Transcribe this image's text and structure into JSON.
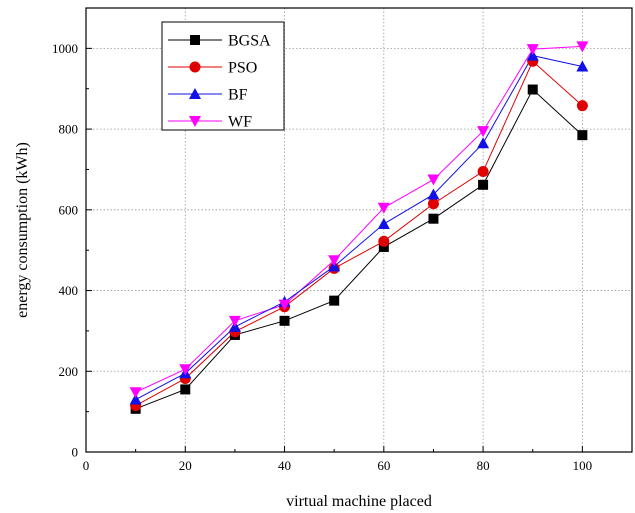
{
  "chart_data": {
    "type": "line",
    "title": "",
    "xlabel": "virtual machine placed",
    "ylabel": "energy consumption (kWh)",
    "xlim": [
      0,
      110
    ],
    "ylim": [
      0,
      1100
    ],
    "x_ticks": [
      0,
      20,
      40,
      60,
      80,
      100
    ],
    "y_ticks": [
      0,
      200,
      400,
      600,
      800,
      1000
    ],
    "x": [
      10,
      20,
      30,
      40,
      50,
      60,
      70,
      80,
      90,
      100
    ],
    "grid": "dotted at x=20, 40, 60, 80, 100 and y=200, 400, 600, 800, 1000",
    "legend_position": "top-left",
    "series": [
      {
        "name": "BGSA",
        "marker": "square",
        "color": "#000000",
        "line_color": "#000000",
        "values": [
          107,
          155,
          290,
          325,
          375,
          508,
          578,
          662,
          898,
          785
        ]
      },
      {
        "name": "PSO",
        "marker": "circle",
        "color": "#e00000",
        "line_color": "#e00000",
        "values": [
          115,
          182,
          298,
          360,
          455,
          522,
          615,
          695,
          968,
          858
        ]
      },
      {
        "name": "BF",
        "marker": "triangle-up",
        "color": "#1010e8",
        "line_color": "#1010e8",
        "values": [
          130,
          195,
          310,
          372,
          460,
          565,
          638,
          765,
          982,
          955
        ]
      },
      {
        "name": "WF",
        "marker": "triangle-down",
        "color": "#ff00ff",
        "line_color": "#ff00ff",
        "values": [
          148,
          205,
          325,
          365,
          475,
          605,
          675,
          795,
          998,
          1005
        ]
      }
    ]
  }
}
